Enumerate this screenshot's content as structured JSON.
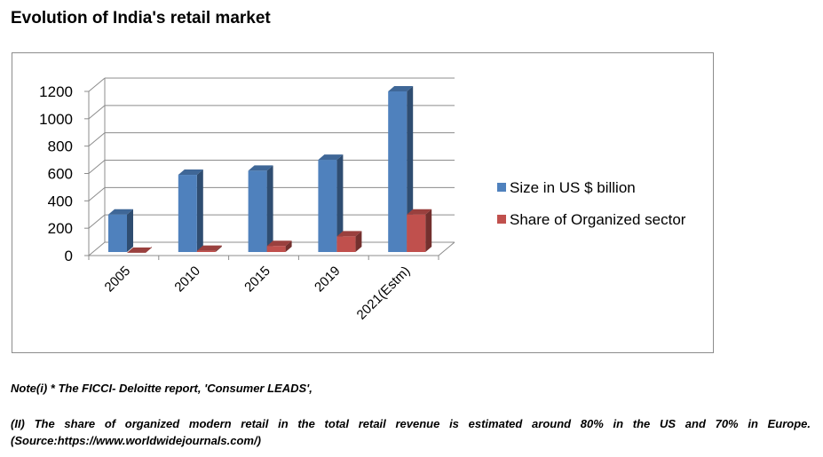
{
  "title": "Evolution of India's retail market",
  "chart_data": {
    "type": "bar",
    "title": "",
    "xlabel": "",
    "ylabel": "",
    "ylim": [
      0,
      1200
    ],
    "yticks": [
      0,
      200,
      400,
      600,
      800,
      1000,
      1200
    ],
    "grid": true,
    "legend_position": "right",
    "categories": [
      "2005",
      "2010",
      "2015",
      "2019",
      "2021(Estm)"
    ],
    "series": [
      {
        "name": "Size in US $ billion",
        "color": "#4F81BD",
        "values": [
          300,
          590,
          620,
          700,
          1200
        ]
      },
      {
        "name": "Share of Organized sector",
        "color": "#C0504D",
        "values": [
          20,
          35,
          70,
          140,
          300
        ]
      }
    ]
  },
  "notes": {
    "note1": "Note(i) * The FICCI- Deloitte report, 'Consumer LEADS',",
    "note2": "(II) The share of organized modern retail in the total retail revenue is estimated around 80% in the US and 70% in Europe. (Source:https://www.worldwidejournals.com/)"
  }
}
